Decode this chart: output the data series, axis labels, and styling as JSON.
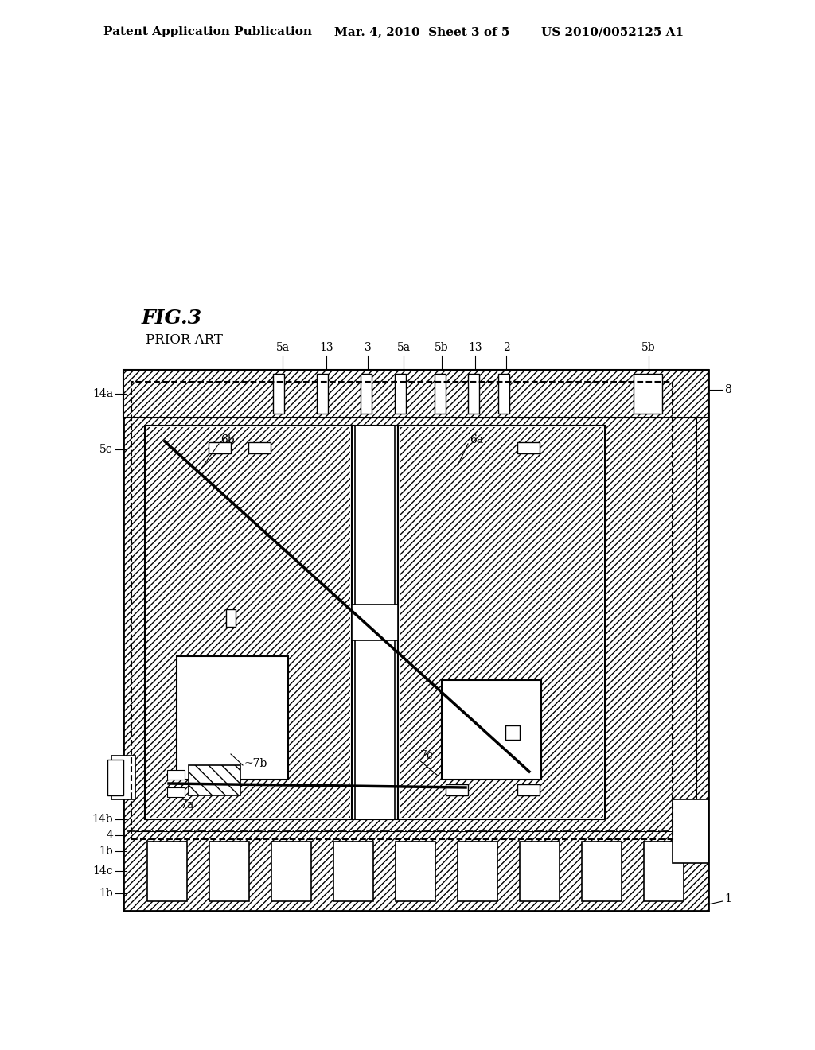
{
  "bg_color": "#ffffff",
  "header_text1": "Patent Application Publication",
  "header_text2": "Mar. 4, 2010  Sheet 3 of 5",
  "header_text3": "US 2010/0052125 A1",
  "fig_label": "FIG.3",
  "prior_art": "PRIOR ART"
}
